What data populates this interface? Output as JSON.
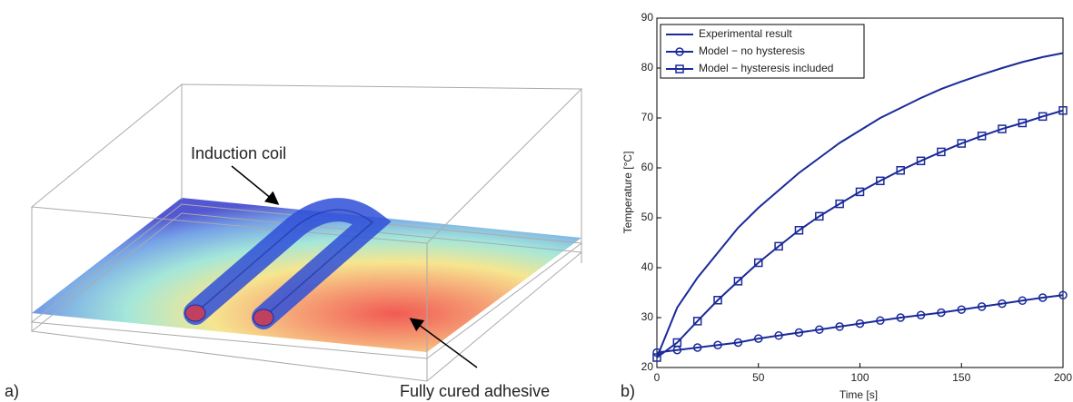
{
  "figure": {
    "panel_a_label": "a)",
    "panel_b_label": "b)",
    "annotations": [
      "Induction coil",
      "Fully cured adhesive"
    ]
  },
  "chart_data": {
    "type": "line",
    "x_label": "Time [s]",
    "y_label": "Temperature [°C]",
    "x": [
      0,
      10,
      20,
      30,
      40,
      50,
      60,
      70,
      80,
      90,
      100,
      110,
      120,
      130,
      140,
      150,
      160,
      170,
      180,
      190,
      200
    ],
    "series": [
      {
        "name": "Experimental result",
        "color": "#1a2a9a",
        "marker": "none",
        "values": [
          22,
          32,
          38,
          43,
          48,
          52,
          55.5,
          59,
          62,
          65,
          67.5,
          70,
          72,
          74,
          75.8,
          77.3,
          78.7,
          80,
          81.2,
          82.2,
          83
        ]
      },
      {
        "name": "Model − no hysteresis",
        "color": "#1a2a9a",
        "marker": "circle",
        "values": [
          23,
          23.5,
          24,
          24.5,
          25,
          25.8,
          26.4,
          27,
          27.6,
          28.2,
          28.8,
          29.4,
          30,
          30.5,
          31,
          31.6,
          32.2,
          32.8,
          33.4,
          34,
          34.5
        ]
      },
      {
        "name": "Model − hysteresis included",
        "color": "#1a2a9a",
        "marker": "square",
        "values": [
          22,
          25,
          29.3,
          33.5,
          37.3,
          41,
          44.3,
          47.5,
          50.3,
          52.8,
          55.2,
          57.4,
          59.5,
          61.4,
          63.2,
          64.9,
          66.4,
          67.8,
          69,
          70.3,
          71.5
        ]
      }
    ],
    "xlim": [
      0,
      200
    ],
    "xticks": [
      0,
      50,
      100,
      150,
      200
    ],
    "ylim": [
      20,
      90
    ],
    "yticks": [
      20,
      30,
      40,
      50,
      60,
      70,
      80,
      90
    ],
    "grid": false,
    "legend": "upper-left"
  }
}
